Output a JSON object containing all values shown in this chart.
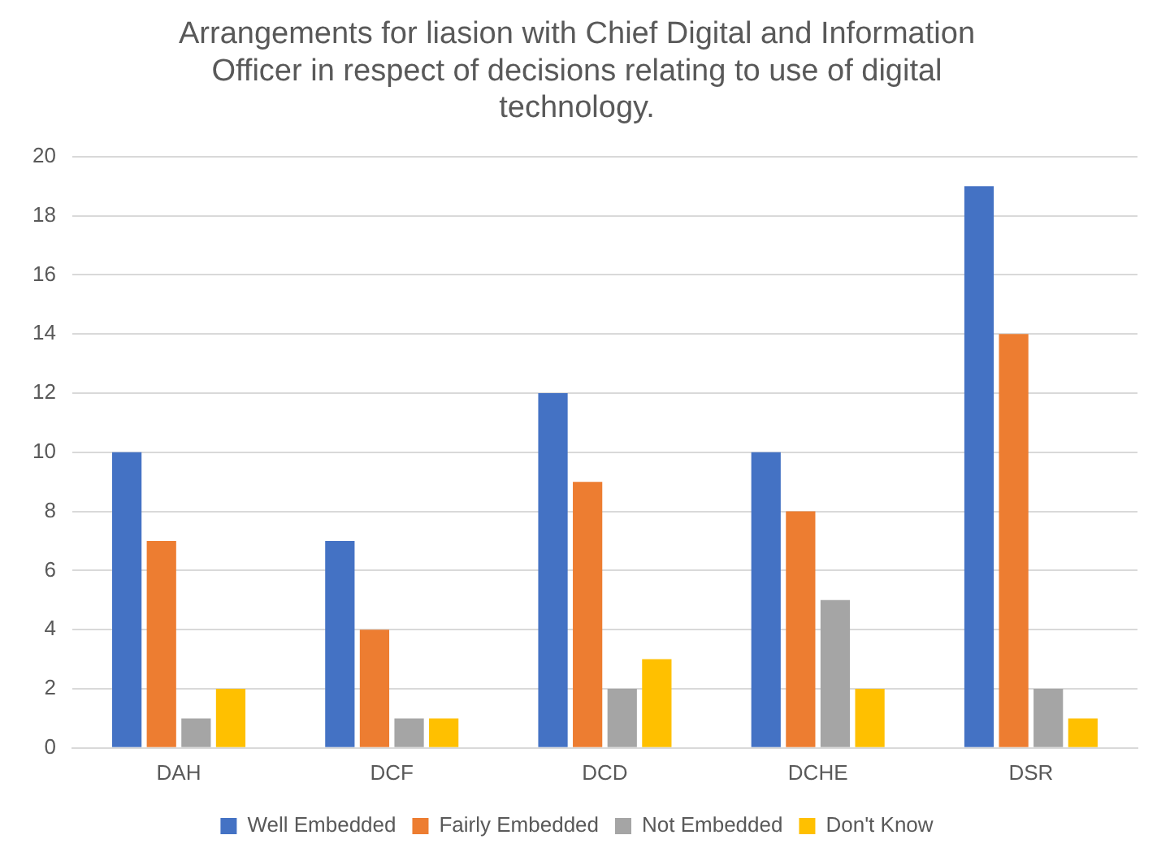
{
  "chart_data": {
    "type": "bar",
    "title": "Arrangements for liasion with Chief Digital and Information Officer in respect of decisions relating to use of digital technology.",
    "categories": [
      "DAH",
      "DCF",
      "DCD",
      "DCHE",
      "DSR"
    ],
    "series": [
      {
        "name": "Well Embedded",
        "color": "#4472c4",
        "values": [
          10,
          7,
          12,
          10,
          19
        ]
      },
      {
        "name": "Fairly Embedded",
        "color": "#ed7d31",
        "values": [
          7,
          4,
          9,
          8,
          14
        ]
      },
      {
        "name": "Not Embedded",
        "color": "#a5a5a5",
        "values": [
          1,
          1,
          2,
          5,
          2
        ]
      },
      {
        "name": "Don't Know",
        "color": "#ffc000",
        "values": [
          2,
          1,
          3,
          2,
          1
        ]
      }
    ],
    "ylim": [
      0,
      20
    ],
    "yticks": [
      0,
      2,
      4,
      6,
      8,
      10,
      12,
      14,
      16,
      18,
      20
    ],
    "grid": "y",
    "legend": "bottom"
  }
}
